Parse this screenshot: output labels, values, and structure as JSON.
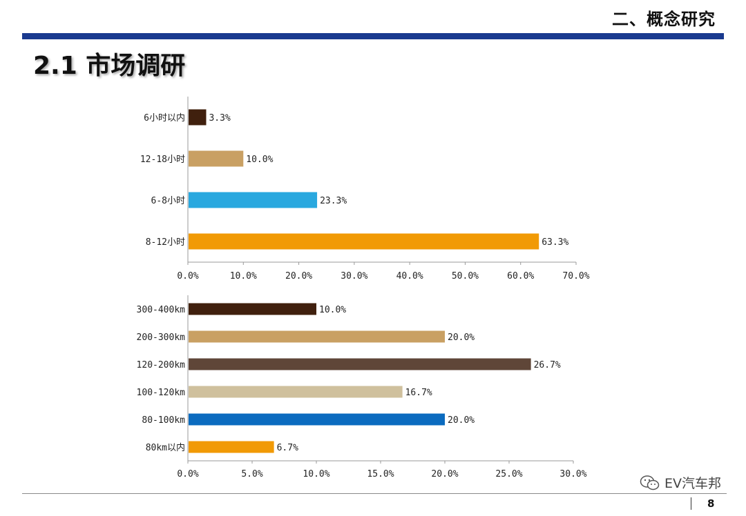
{
  "header": {
    "section": "二、概念研究",
    "title": "2.1 市场调研"
  },
  "footer": {
    "page_number": "8",
    "watermark_text": "EV汽车邦",
    "watermark_icon": "wechat-icon"
  },
  "chart_data": [
    {
      "type": "bar",
      "orientation": "horizontal",
      "categories": [
        "6小时以内",
        "12-18小时",
        "6-8小时",
        "8-12小时"
      ],
      "values": [
        3.3,
        10.0,
        23.3,
        63.3
      ],
      "value_labels": [
        "3.3%",
        "10.0%",
        "23.3%",
        "63.3%"
      ],
      "colors": [
        "#40200e",
        "#c9a063",
        "#29a8df",
        "#f19a05"
      ],
      "xlim": [
        0,
        70
      ],
      "x_ticks": [
        "0.0%",
        "10.0%",
        "20.0%",
        "30.0%",
        "40.0%",
        "50.0%",
        "60.0%",
        "70.0%"
      ],
      "grid": false
    },
    {
      "type": "bar",
      "orientation": "horizontal",
      "categories": [
        "300-400km",
        "200-300km",
        "120-200km",
        "100-120km",
        "80-100km",
        "80km以内"
      ],
      "values": [
        10.0,
        20.0,
        26.7,
        16.7,
        20.0,
        6.7
      ],
      "value_labels": [
        "10.0%",
        "20.0%",
        "26.7%",
        "16.7%",
        "20.0%",
        "6.7%"
      ],
      "colors": [
        "#40200e",
        "#c9a063",
        "#5f4638",
        "#cfc09d",
        "#0b6bbf",
        "#f19a05"
      ],
      "xlim": [
        0,
        30
      ],
      "x_ticks": [
        "0.0%",
        "5.0%",
        "10.0%",
        "15.0%",
        "20.0%",
        "25.0%",
        "30.0%"
      ],
      "grid": false
    }
  ]
}
